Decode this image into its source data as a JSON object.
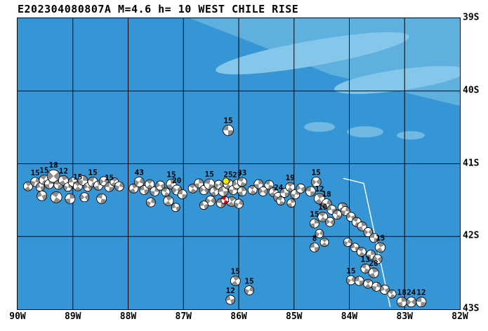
{
  "title": "E202304080807A M=4.6 h= 10 WEST CHILE RISE",
  "map": {
    "lon_min_w": 90,
    "lon_max_w": 82,
    "lat_min_s": 39,
    "lat_max_s": 43,
    "lon_ticks": [
      "90W",
      "89W",
      "88W",
      "87W",
      "86W",
      "85W",
      "84W",
      "83W",
      "82W"
    ],
    "lat_ticks": [
      "39S",
      "40S",
      "41S",
      "42S",
      "43S"
    ],
    "colors": {
      "ocean": "#3695D4",
      "shallow_band": "#5FB0DF",
      "shallow_streak": "#84C7EA",
      "shallow_blob": "#6FB9E2",
      "grid": "#000000",
      "region_outline": "#FFFFFF",
      "beachball_gray": "#8C8C8C",
      "beachball_white": "#FFFFFF",
      "highlight_red": "#E8000A",
      "highlight_yellow": "#FFE800"
    }
  },
  "region_outline": [
    [
      84.11,
      41.2
    ],
    [
      83.74,
      41.27
    ],
    [
      83.26,
      42.97
    ]
  ],
  "highlight": {
    "red_event": {
      "lon": 86.25,
      "lat": 41.5,
      "size": 11
    },
    "yellow_marker": {
      "lon": 86.23,
      "lat": 41.24,
      "size": 9
    }
  },
  "events": [
    [
      86.19,
      40.54,
      "15",
      15
    ],
    [
      89.81,
      41.31,
      "",
      13
    ],
    [
      89.68,
      41.25,
      "15",
      13
    ],
    [
      89.59,
      41.32,
      "",
      12
    ],
    [
      89.52,
      41.22,
      "15",
      14
    ],
    [
      89.43,
      41.28,
      "",
      13
    ],
    [
      89.35,
      41.17,
      "18",
      18
    ],
    [
      89.26,
      41.29,
      "",
      13
    ],
    [
      89.17,
      41.23,
      "12",
      14
    ],
    [
      89.09,
      41.32,
      "",
      12
    ],
    [
      89.0,
      41.25,
      "",
      13
    ],
    [
      88.91,
      41.31,
      "15",
      13
    ],
    [
      88.82,
      41.23,
      "",
      14
    ],
    [
      88.73,
      41.32,
      "",
      12
    ],
    [
      88.64,
      41.25,
      "15",
      14
    ],
    [
      88.54,
      41.3,
      "",
      13
    ],
    [
      88.44,
      41.24,
      "",
      13
    ],
    [
      88.34,
      41.32,
      "15",
      13
    ],
    [
      88.25,
      41.25,
      "",
      12
    ],
    [
      88.16,
      41.31,
      "",
      13
    ],
    [
      89.56,
      41.44,
      "",
      14
    ],
    [
      89.3,
      41.46,
      "",
      16
    ],
    [
      89.05,
      41.48,
      "",
      14
    ],
    [
      88.79,
      41.46,
      "",
      13
    ],
    [
      88.48,
      41.48,
      "",
      14
    ],
    [
      87.9,
      41.34,
      "",
      13
    ],
    [
      87.8,
      41.25,
      "43",
      14
    ],
    [
      87.71,
      41.36,
      "",
      13
    ],
    [
      87.61,
      41.28,
      "",
      13
    ],
    [
      87.52,
      41.38,
      "",
      13
    ],
    [
      87.42,
      41.3,
      "",
      13
    ],
    [
      87.32,
      41.39,
      "",
      12
    ],
    [
      87.22,
      41.28,
      "15",
      14
    ],
    [
      87.12,
      41.36,
      "20",
      14
    ],
    [
      87.02,
      41.42,
      "",
      13
    ],
    [
      87.27,
      41.51,
      "",
      14
    ],
    [
      87.59,
      41.53,
      "",
      13
    ],
    [
      87.14,
      41.6,
      "",
      12
    ],
    [
      86.83,
      41.34,
      "",
      13
    ],
    [
      86.72,
      41.27,
      "",
      13
    ],
    [
      86.63,
      41.36,
      "",
      13
    ],
    [
      86.53,
      41.28,
      "15",
      15
    ],
    [
      86.44,
      41.38,
      "",
      13
    ],
    [
      86.36,
      41.29,
      "",
      13
    ],
    [
      86.28,
      41.38,
      "",
      14
    ],
    [
      86.19,
      41.28,
      "25",
      14
    ],
    [
      86.1,
      41.36,
      "",
      13
    ],
    [
      86.03,
      41.28,
      "27",
      13
    ],
    [
      85.94,
      41.25,
      "33",
      13
    ],
    [
      85.94,
      41.38,
      "",
      13
    ],
    [
      86.51,
      41.51,
      "",
      14
    ],
    [
      86.32,
      41.54,
      "",
      13
    ],
    [
      86.13,
      41.52,
      "",
      14
    ],
    [
      86.0,
      41.55,
      "",
      13
    ],
    [
      86.63,
      41.57,
      "",
      12
    ],
    [
      85.75,
      41.36,
      "",
      13
    ],
    [
      85.64,
      41.28,
      "",
      13
    ],
    [
      85.56,
      41.38,
      "",
      13
    ],
    [
      85.45,
      41.29,
      "",
      13
    ],
    [
      85.37,
      41.39,
      "",
      13
    ],
    [
      85.28,
      41.46,
      "24",
      14
    ],
    [
      85.17,
      41.4,
      "",
      13
    ],
    [
      85.07,
      41.32,
      "19",
      13
    ],
    [
      84.98,
      41.42,
      "",
      13
    ],
    [
      84.88,
      41.34,
      "",
      13
    ],
    [
      85.24,
      41.51,
      "",
      12
    ],
    [
      85.05,
      41.54,
      "",
      12
    ],
    [
      84.6,
      41.25,
      "15",
      14
    ],
    [
      84.7,
      41.38,
      "",
      14
    ],
    [
      84.54,
      41.48,
      "12",
      15
    ],
    [
      84.41,
      41.55,
      "18",
      14
    ],
    [
      84.32,
      41.63,
      "",
      13
    ],
    [
      84.48,
      41.73,
      "19",
      14
    ],
    [
      84.63,
      41.82,
      "15",
      13
    ],
    [
      84.35,
      41.8,
      "",
      13
    ],
    [
      84.22,
      41.7,
      "",
      13
    ],
    [
      84.12,
      41.6,
      "",
      13
    ],
    [
      84.54,
      41.96,
      "",
      12
    ],
    [
      84.63,
      42.15,
      "8",
      13
    ],
    [
      84.45,
      42.08,
      "",
      12
    ],
    [
      84.07,
      41.65,
      "",
      13
    ],
    [
      83.97,
      41.73,
      "",
      13
    ],
    [
      83.87,
      41.8,
      "",
      13
    ],
    [
      83.77,
      41.86,
      "",
      13
    ],
    [
      83.66,
      41.94,
      "",
      13
    ],
    [
      83.55,
      42.02,
      "",
      13
    ],
    [
      83.44,
      42.15,
      "15",
      14
    ],
    [
      84.03,
      42.08,
      "",
      12
    ],
    [
      83.9,
      42.15,
      "",
      12
    ],
    [
      83.78,
      42.21,
      "",
      13
    ],
    [
      83.61,
      42.25,
      "",
      13
    ],
    [
      83.49,
      42.31,
      "",
      13
    ],
    [
      83.71,
      42.44,
      "13",
      13
    ],
    [
      83.56,
      42.5,
      "28",
      14
    ],
    [
      83.97,
      42.6,
      "15",
      13
    ],
    [
      83.82,
      42.61,
      "",
      13
    ],
    [
      83.66,
      42.65,
      "",
      13
    ],
    [
      83.51,
      42.69,
      "",
      13
    ],
    [
      83.36,
      42.73,
      "",
      13
    ],
    [
      83.23,
      42.79,
      "",
      12
    ],
    [
      83.05,
      42.9,
      "18",
      14
    ],
    [
      82.88,
      42.9,
      "24",
      14
    ],
    [
      82.7,
      42.9,
      "12",
      14
    ],
    [
      86.06,
      42.61,
      "15",
      14
    ],
    [
      85.81,
      42.74,
      "15",
      13
    ],
    [
      86.15,
      42.87,
      "12",
      13
    ]
  ]
}
